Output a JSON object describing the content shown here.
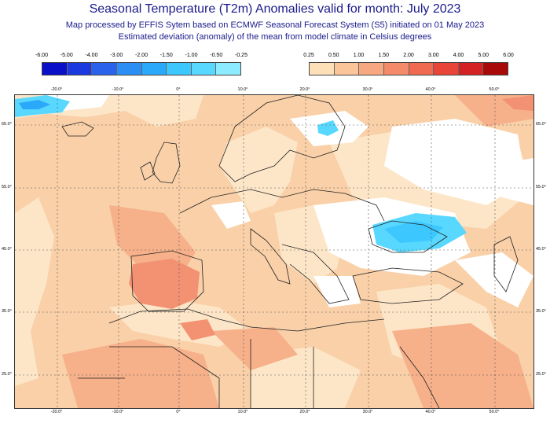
{
  "header": {
    "title": "Seasonal Temperature (T2m) Anomalies valid for month: July 2023",
    "subtitle_line1": "Map processed by EFFIS Sytem based on ECMWF Seasonal Forecast System (S5) initiated on 01 May 2023",
    "subtitle_line2": "Estimated deviation (anomaly) of the mean from model climate in Celsius degrees"
  },
  "legend": {
    "negative": {
      "labels": [
        "-6.00",
        "-5.00",
        "-4.00",
        "-3.00",
        "-2.00",
        "-1.50",
        "-1.00",
        "-0.50",
        "-0.25"
      ],
      "colors": [
        "#0a10c8",
        "#1a3ae0",
        "#2a62ec",
        "#2a8ef5",
        "#2aa8fa",
        "#3cc8ff",
        "#58d8ff",
        "#8cebff"
      ]
    },
    "positive": {
      "labels": [
        "0.25",
        "0.50",
        "1.00",
        "1.50",
        "2.00",
        "3.00",
        "4.00",
        "5.00",
        "6.00"
      ],
      "colors": [
        "#fde0b8",
        "#fbc59a",
        "#f8a880",
        "#f58a6a",
        "#f06a52",
        "#e84438",
        "#d42222",
        "#a80a0a"
      ]
    }
  },
  "map": {
    "longitude_ticks": [
      "-20.0°",
      "-10.0°",
      "0°",
      "10.0°",
      "20.0°",
      "30.0°",
      "40.0°",
      "50.0°"
    ],
    "latitude_ticks": [
      "65.0°",
      "55.0°",
      "45.0°",
      "35.0°",
      "25.0°"
    ],
    "colors": {
      "base": "#f9d0a8",
      "light": "#fde6c8",
      "medium": "#f6b08a",
      "strong": "#f29272",
      "neutral": "#ffffff",
      "cool_light": "#58d8ff",
      "cool": "#2aa8fa",
      "coast": "#222222",
      "grid": "#555555"
    }
  }
}
